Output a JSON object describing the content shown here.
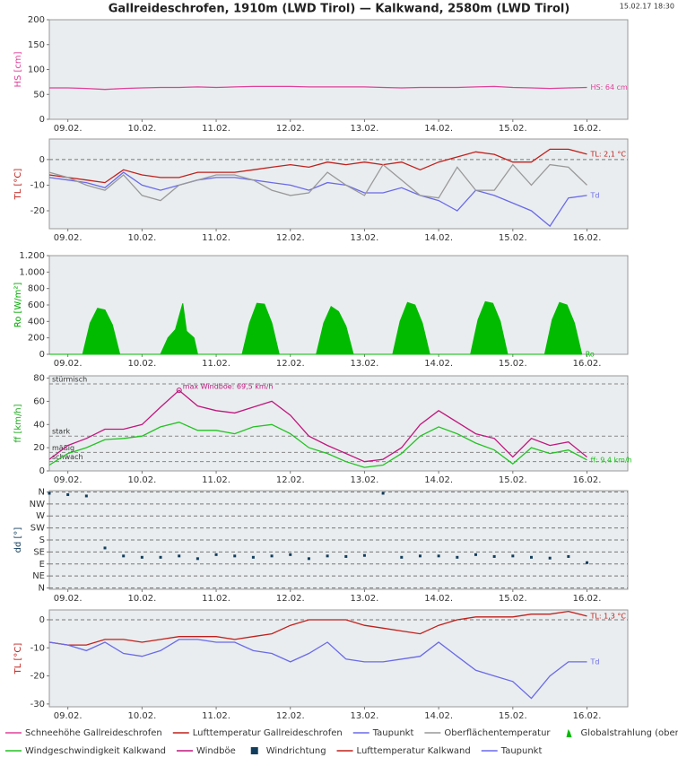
{
  "title": "Gallreideschrofen, 1910m (LWD Tirol) — Kalkwand, 2580m (LWD Tirol)",
  "timestamp": "15.02.17 18:30",
  "legend_position": "bottom",
  "chart_data": [
    {
      "type": "line",
      "ylabel": "HS [cm]",
      "ylabel_color": "#e0409a",
      "ylim": [
        0,
        200
      ],
      "yticks": [
        0,
        50,
        100,
        150,
        200
      ],
      "xlim": [
        -0.25,
        7.55
      ],
      "xticks": [
        {
          "value": 0,
          "label": "09.02."
        },
        {
          "value": 1,
          "label": "10.02."
        },
        {
          "value": 2,
          "label": "11.02."
        },
        {
          "value": 3,
          "label": "12.02."
        },
        {
          "value": 4,
          "label": "13.02."
        },
        {
          "value": 5,
          "label": "14.02."
        },
        {
          "value": 6,
          "label": "15.02."
        },
        {
          "value": 7,
          "label": "16.02."
        }
      ],
      "x": [
        -0.25,
        0,
        0.25,
        0.5,
        0.75,
        1,
        1.25,
        1.5,
        1.75,
        2,
        2.25,
        2.5,
        2.75,
        3,
        3.25,
        3.5,
        3.75,
        4,
        4.25,
        4.5,
        4.75,
        5,
        5.25,
        5.5,
        5.75,
        6,
        6.25,
        6.5,
        6.75,
        7
      ],
      "series": [
        {
          "name": "Schneehöhe Gallreideschrofen",
          "color": "#e0409a",
          "end_label": "HS: 64 cm",
          "values": [
            63,
            63,
            62,
            60,
            62,
            63,
            64,
            64,
            65,
            64,
            65,
            66,
            66,
            66,
            65,
            65,
            65,
            65,
            64,
            63,
            64,
            64,
            64,
            65,
            66,
            64,
            63,
            62,
            63,
            64
          ]
        }
      ]
    },
    {
      "type": "line",
      "ylabel": "TL [°C]",
      "ylabel_color": "#c0201c",
      "ylim": [
        -27,
        8
      ],
      "yticks": [
        -20,
        -10,
        0
      ],
      "zero_line": true,
      "xlim": [
        -0.25,
        7.55
      ],
      "xticks": [
        {
          "value": 0,
          "label": "09.02."
        },
        {
          "value": 1,
          "label": "10.02."
        },
        {
          "value": 2,
          "label": "11.02."
        },
        {
          "value": 3,
          "label": "12.02."
        },
        {
          "value": 4,
          "label": "13.02."
        },
        {
          "value": 5,
          "label": "14.02."
        },
        {
          "value": 6,
          "label": "15.02."
        },
        {
          "value": 7,
          "label": "16.02."
        }
      ],
      "x": [
        -0.25,
        0,
        0.25,
        0.5,
        0.75,
        1,
        1.25,
        1.5,
        1.75,
        2,
        2.25,
        2.5,
        2.75,
        3,
        3.25,
        3.5,
        3.75,
        4,
        4.25,
        4.5,
        4.75,
        5,
        5.25,
        5.5,
        5.75,
        6,
        6.25,
        6.5,
        6.75,
        7
      ],
      "series": [
        {
          "name": "Lufttemperatur Gallreideschrofen",
          "color": "#c0201c",
          "end_label": "TL: 2,1 °C",
          "values": [
            -6,
            -7,
            -8,
            -9,
            -4,
            -6,
            -7,
            -7,
            -5,
            -5,
            -5,
            -4,
            -3,
            -2,
            -3,
            -1,
            -2,
            -1,
            -2,
            -1,
            -4,
            -1,
            1,
            3,
            2,
            -1,
            -1,
            4,
            4,
            2.1
          ]
        },
        {
          "name": "Taupunkt",
          "color": "#6a6ae8",
          "end_label": "Td",
          "values": [
            -7,
            -8,
            -9,
            -11,
            -5,
            -10,
            -12,
            -10,
            -8,
            -7,
            -7,
            -8,
            -9,
            -10,
            -12,
            -9,
            -10,
            -13,
            -13,
            -11,
            -14,
            -16,
            -20,
            -12,
            -14,
            -17,
            -20,
            -26,
            -15,
            -14
          ]
        },
        {
          "name": "Oberflächentemperatur",
          "color": "#999999",
          "values": [
            -5,
            -7,
            -10,
            -12,
            -6,
            -14,
            -16,
            -10,
            -8,
            -6,
            -6,
            -8,
            -12,
            -14,
            -13,
            -5,
            -10,
            -14,
            -2,
            -8,
            -14,
            -15,
            -3,
            -12,
            -12,
            -2,
            -10,
            -2,
            -3,
            -10
          ]
        }
      ]
    },
    {
      "type": "area",
      "ylabel": "Ro [W/m²]",
      "ylabel_color": "#00aa00",
      "ylim": [
        0,
        1200
      ],
      "yticks": [
        0,
        200,
        400,
        600,
        800,
        {
          "value": 1000,
          "label": "1.000"
        },
        {
          "value": 1200,
          "label": "1.200"
        }
      ],
      "xlim": [
        -0.25,
        7.55
      ],
      "xticks": [
        {
          "value": 0,
          "label": "09.02."
        },
        {
          "value": 1,
          "label": "10.02."
        },
        {
          "value": 2,
          "label": "11.02."
        },
        {
          "value": 3,
          "label": "12.02."
        },
        {
          "value": 4,
          "label": "13.02."
        },
        {
          "value": 5,
          "label": "14.02."
        },
        {
          "value": 6,
          "label": "15.02."
        },
        {
          "value": 7,
          "label": "16.02."
        }
      ],
      "x": [
        -0.25,
        0.2,
        0.3,
        0.4,
        0.5,
        0.6,
        0.7,
        1.25,
        1.35,
        1.45,
        1.55,
        1.6,
        1.7,
        1.75,
        2.35,
        2.45,
        2.55,
        2.65,
        2.75,
        2.85,
        3.35,
        3.45,
        3.55,
        3.65,
        3.75,
        3.85,
        4.38,
        4.48,
        4.58,
        4.68,
        4.78,
        4.88,
        5.43,
        5.53,
        5.63,
        5.73,
        5.83,
        5.93,
        6.43,
        6.53,
        6.63,
        6.73,
        6.83,
        6.93
      ],
      "series": [
        {
          "name": "Globalstrahlung (oben)",
          "color": "#00bb00",
          "end_label": "Ro",
          "values": [
            0,
            0,
            380,
            560,
            540,
            360,
            0,
            0,
            200,
            300,
            620,
            280,
            200,
            0,
            0,
            380,
            620,
            610,
            380,
            0,
            0,
            380,
            580,
            520,
            340,
            0,
            0,
            400,
            630,
            600,
            380,
            0,
            0,
            420,
            640,
            620,
            400,
            0,
            0,
            420,
            630,
            600,
            380,
            0
          ]
        }
      ]
    },
    {
      "type": "line",
      "ylabel": "ff [km/h]",
      "ylabel_color": "#22aa22",
      "ylim": [
        0,
        82
      ],
      "yticks": [
        0,
        20,
        40,
        60,
        80
      ],
      "reference_lines": [
        {
          "value": 75,
          "label": "stürmisch"
        },
        {
          "value": 30,
          "label": "stark"
        },
        {
          "value": 16,
          "label": "mäßig"
        },
        {
          "value": 8,
          "label": "schwach"
        }
      ],
      "xlim": [
        -0.25,
        7.55
      ],
      "xticks": [
        {
          "value": 0,
          "label": "09.02."
        },
        {
          "value": 1,
          "label": "10.02."
        },
        {
          "value": 2,
          "label": "11.02."
        },
        {
          "value": 3,
          "label": "12.02."
        },
        {
          "value": 4,
          "label": "13.02."
        },
        {
          "value": 5,
          "label": "14.02."
        },
        {
          "value": 6,
          "label": "15.02."
        },
        {
          "value": 7,
          "label": "16.02."
        }
      ],
      "x": [
        -0.25,
        0,
        0.25,
        0.5,
        0.75,
        1,
        1.25,
        1.5,
        1.75,
        2,
        2.25,
        2.5,
        2.75,
        3,
        3.25,
        3.5,
        3.75,
        4,
        4.25,
        4.5,
        4.75,
        5,
        5.25,
        5.5,
        5.75,
        6,
        6.25,
        6.5,
        6.75,
        7
      ],
      "series": [
        {
          "name": "Windgeschwindigkeit Kalkwand",
          "color": "#22c222",
          "end_label": "ff: 9,4 km/h",
          "values": [
            5,
            15,
            20,
            27,
            28,
            30,
            38,
            42,
            35,
            35,
            32,
            38,
            40,
            32,
            20,
            15,
            8,
            3,
            5,
            15,
            30,
            38,
            32,
            24,
            18,
            6,
            20,
            15,
            18,
            9.4
          ]
        },
        {
          "name": "Windböe",
          "color": "#c0177f",
          "max_label": "max Windböe: 69,5 km/h",
          "values": [
            10,
            22,
            28,
            36,
            36,
            40,
            55,
            69.5,
            56,
            52,
            50,
            55,
            60,
            48,
            30,
            22,
            15,
            8,
            10,
            20,
            40,
            52,
            42,
            32,
            28,
            12,
            28,
            22,
            25,
            12
          ]
        }
      ]
    },
    {
      "type": "scatter",
      "ylabel": "dd [°]",
      "ylabel_color": "#123d5c",
      "ylim": [
        -5,
        365
      ],
      "grid": true,
      "yticks": [
        {
          "value": 0,
          "label": "N"
        },
        {
          "value": 45,
          "label": "NE"
        },
        {
          "value": 90,
          "label": "E"
        },
        {
          "value": 135,
          "label": "SE"
        },
        {
          "value": 180,
          "label": "S"
        },
        {
          "value": 225,
          "label": "SW"
        },
        {
          "value": 270,
          "label": "W"
        },
        {
          "value": 315,
          "label": "NW"
        },
        {
          "value": 360,
          "label": "N"
        }
      ],
      "xlim": [
        -0.25,
        7.55
      ],
      "xticks": [
        {
          "value": 0,
          "label": "09.02."
        },
        {
          "value": 1,
          "label": "10.02."
        },
        {
          "value": 2,
          "label": "11.02."
        },
        {
          "value": 3,
          "label": "12.02."
        },
        {
          "value": 4,
          "label": "13.02."
        },
        {
          "value": 5,
          "label": "14.02."
        },
        {
          "value": 6,
          "label": "15.02."
        },
        {
          "value": 7,
          "label": "16.02."
        }
      ],
      "x": [
        -0.25,
        0,
        0.25,
        0.5,
        0.75,
        1,
        1.25,
        1.5,
        1.75,
        2,
        2.25,
        2.5,
        2.75,
        3,
        3.25,
        3.5,
        3.75,
        4,
        4.25,
        4.5,
        4.75,
        5,
        5.25,
        5.5,
        5.75,
        6,
        6.25,
        6.5,
        6.75,
        7
      ],
      "series": [
        {
          "name": "Windrichtung",
          "color": "#123d5c",
          "values": [
            355,
            350,
            345,
            150,
            120,
            115,
            115,
            120,
            110,
            125,
            120,
            115,
            120,
            125,
            110,
            120,
            118,
            122,
            355,
            115,
            120,
            120,
            115,
            125,
            118,
            120,
            115,
            112,
            118,
            95
          ]
        }
      ]
    },
    {
      "type": "line",
      "ylabel": "TL [°C]",
      "ylabel_color": "#c0201c",
      "ylim": [
        -31,
        3.5
      ],
      "yticks": [
        -30,
        -20,
        -10,
        0
      ],
      "zero_line": true,
      "xlim": [
        -0.25,
        7.55
      ],
      "xticks": [
        {
          "value": 0,
          "label": "09.02."
        },
        {
          "value": 1,
          "label": "10.02."
        },
        {
          "value": 2,
          "label": "11.02."
        },
        {
          "value": 3,
          "label": "12.02."
        },
        {
          "value": 4,
          "label": "13.02."
        },
        {
          "value": 5,
          "label": "14.02."
        },
        {
          "value": 6,
          "label": "15.02."
        },
        {
          "value": 7,
          "label": "16.02."
        }
      ],
      "x": [
        -0.25,
        0,
        0.25,
        0.5,
        0.75,
        1,
        1.25,
        1.5,
        1.75,
        2,
        2.25,
        2.5,
        2.75,
        3,
        3.25,
        3.5,
        3.75,
        4,
        4.25,
        4.5,
        4.75,
        5,
        5.25,
        5.5,
        5.75,
        6,
        6.25,
        6.5,
        6.75,
        7
      ],
      "series": [
        {
          "name": "Lufttemperatur Kalkwand",
          "color": "#c0201c",
          "end_label": "TL: 1,3 °C",
          "values": [
            -8,
            -9,
            -9,
            -7,
            -7,
            -8,
            -7,
            -6,
            -6,
            -6,
            -7,
            -6,
            -5,
            -2,
            0,
            0,
            0,
            -2,
            -3,
            -4,
            -5,
            -2,
            0,
            1,
            1,
            1,
            2,
            2,
            3,
            1.3
          ]
        },
        {
          "name": "Taupunkt",
          "color": "#6a6ae8",
          "end_label": "Td",
          "values": [
            -8,
            -9,
            -11,
            -8,
            -12,
            -13,
            -11,
            -7,
            -7,
            -8,
            -8,
            -11,
            -12,
            -15,
            -12,
            -8,
            -14,
            -15,
            -15,
            -14,
            -13,
            -8,
            -13,
            -18,
            -20,
            -22,
            -28,
            -20,
            -15,
            -15
          ]
        }
      ]
    }
  ]
}
